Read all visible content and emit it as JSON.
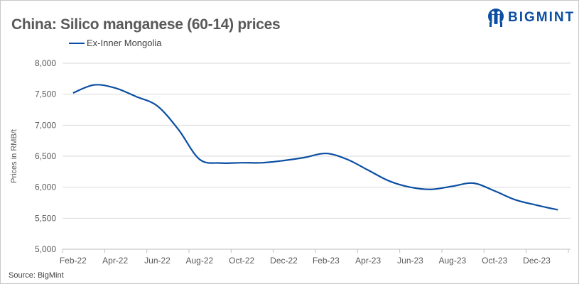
{
  "chart_data": {
    "type": "line",
    "title": "China: Silico manganese (60-14) prices",
    "ylabel": "Prices in RMB/t",
    "xlabel": "",
    "ylim": [
      5000,
      8000
    ],
    "yticks": [
      "5,000",
      "5,500",
      "6,000",
      "6,500",
      "7,000",
      "7,500",
      "8,000"
    ],
    "ytick_values": [
      5000,
      5500,
      6000,
      6500,
      7000,
      7500,
      8000
    ],
    "categories": [
      "Feb-22",
      "Mar-22",
      "Apr-22",
      "May-22",
      "Jun-22",
      "Jul-22",
      "Aug-22",
      "Sep-22",
      "Oct-22",
      "Nov-22",
      "Dec-22",
      "Jan-23",
      "Feb-23",
      "Mar-23",
      "Apr-23",
      "May-23",
      "Jun-23",
      "Jul-23",
      "Aug-23",
      "Sep-23",
      "Oct-23",
      "Nov-23",
      "Dec-23",
      "Jan-24"
    ],
    "xtick_labels": [
      "Feb-22",
      "Apr-22",
      "Jun-22",
      "Aug-22",
      "Oct-22",
      "Dec-22",
      "Feb-23",
      "Apr-23",
      "Jun-23",
      "Aug-23",
      "Oct-23",
      "Dec-23"
    ],
    "series": [
      {
        "name": "Ex-Inner Mongolia",
        "color": "#0b4ea2",
        "values": [
          7520,
          7650,
          7600,
          7460,
          7310,
          6930,
          6450,
          6390,
          6395,
          6395,
          6430,
          6480,
          6545,
          6450,
          6275,
          6100,
          6000,
          5965,
          6015,
          6065,
          5940,
          5795,
          5710,
          5635
        ]
      }
    ],
    "grid": true,
    "legend_placement": "top-left",
    "smooth": true
  },
  "brand": {
    "name": "BIGMINT",
    "color": "#0b4ea2"
  },
  "source": "Source: BigMint"
}
